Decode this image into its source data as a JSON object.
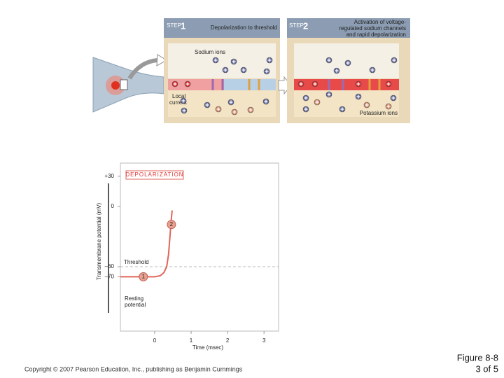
{
  "steps": [
    {
      "step": "STEP",
      "number": "1",
      "title": "Depolarization to threshold"
    },
    {
      "step": "STEP",
      "number": "2",
      "title_lines": [
        "Activation of voltage-",
        "regulated sodium channels",
        "and rapid depolarization"
      ]
    }
  ],
  "labels": {
    "sodium": "Sodium ions",
    "local_current": [
      "Local",
      "current"
    ],
    "potassium": "Potassium ions"
  },
  "chart_data": {
    "type": "line",
    "banner": "DEPOLARIZATION",
    "y_label": "Transmembrane potential (mV)",
    "x_label": "Time (msec)",
    "xlim": [
      -0.94,
      3.4
    ],
    "xticks": [
      0,
      1,
      2,
      3
    ],
    "ylim": [
      -124,
      43
    ],
    "yticks": [
      {
        "value": 30,
        "label": "+30"
      },
      0,
      {
        "value": -60,
        "label": "–60"
      },
      {
        "value": -70,
        "label": "–70"
      }
    ],
    "series": [
      {
        "color": "#e0655a",
        "x": [
          -0.94,
          0,
          0.15,
          0.25,
          0.33,
          0.38,
          0.42,
          0.45,
          0.48
        ],
        "values": [
          -70,
          -70,
          -69,
          -66,
          -60,
          -48,
          -30,
          -15,
          -4
        ]
      }
    ],
    "threshold": {
      "label": "Threshold",
      "value": -60
    },
    "markers": [
      {
        "label": "1",
        "x": -0.31,
        "y": -70
      },
      {
        "label": "2",
        "x": 0.46,
        "y": -18
      }
    ],
    "resting_label": [
      "Resting",
      "potential"
    ]
  },
  "footer": {
    "copyright": "Copyright © 2007 Pearson Education, Inc., publishing as Benjamin Cummings",
    "figure": "Figure 8-8",
    "page": "3 of 5"
  }
}
